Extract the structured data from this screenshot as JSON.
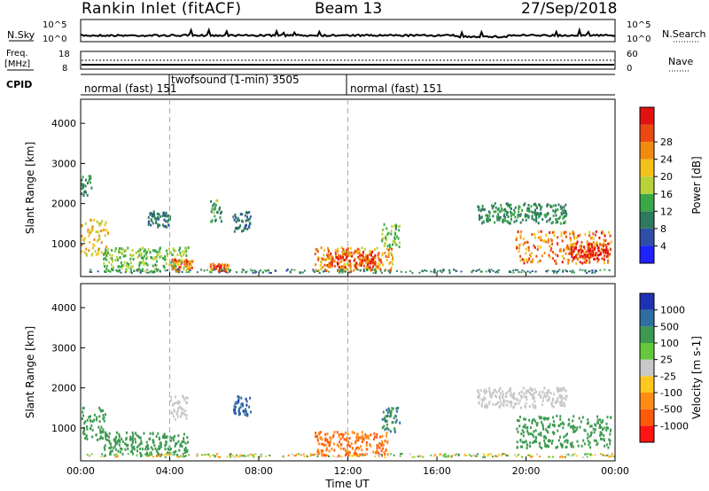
{
  "header": {
    "station": "Rankin Inlet (fitACF)",
    "beam": "Beam 13",
    "date": "27/Sep/2018"
  },
  "panels": {
    "nsky": {
      "left_label": "N.Sky",
      "left_ticks": [
        "10^5",
        "10^0"
      ],
      "right_label": "N.Search",
      "right_ticks": [
        "10^5",
        "10^0"
      ]
    },
    "freq": {
      "left_label_line1": "Freq.",
      "left_label_line2": "[MHz]",
      "left_ticks": [
        "18",
        "8"
      ],
      "right_label": "Nave",
      "right_ticks": [
        "60",
        "0"
      ]
    },
    "cpid": {
      "label": "CPID",
      "segments": [
        {
          "label": "normal (fast)  151",
          "start_hour": 0,
          "end_hour": 4
        },
        {
          "label": "twofsound (1-min) 3505",
          "start_hour": 4,
          "end_hour": 12
        },
        {
          "label": "normal (fast)  151",
          "start_hour": 12,
          "end_hour": 24
        }
      ]
    }
  },
  "x_axis": {
    "label": "Time UT",
    "ticks": [
      "00:00",
      "04:00",
      "08:00",
      "12:00",
      "16:00",
      "20:00",
      "00:00"
    ],
    "range_hours": [
      0,
      24
    ]
  },
  "colors": {
    "power": [
      "#1e22ff",
      "#2e4ea8",
      "#2e7a5e",
      "#3ba848",
      "#b7d23a",
      "#f5c21a",
      "#f08a10",
      "#ea4a12",
      "#e31212"
    ],
    "velocity": [
      "#ff1414",
      "#ff5a0a",
      "#ff8c14",
      "#ffc81e",
      "#c8c8c8",
      "#64c83c",
      "#3c9a50",
      "#2e6ea0",
      "#2032b4"
    ]
  },
  "chart_data": [
    {
      "type": "heatmap",
      "title": "Power",
      "xlabel": "Time UT",
      "ylabel": "Slant Range [km]",
      "ylim": [
        180,
        4600
      ],
      "yticks": [
        "1000",
        "2000",
        "3000",
        "4000"
      ],
      "xlim": [
        0,
        24
      ],
      "colorbar": {
        "label": "Power [dB]",
        "range": [
          0,
          32
        ],
        "ticks": [
          "4",
          "8",
          "12",
          "16",
          "20",
          "24",
          "28"
        ]
      },
      "regions": [
        {
          "t0": 0.0,
          "t1": 1.2,
          "r0": 700,
          "r1": 1600,
          "level": 20
        },
        {
          "t0": 0.0,
          "t1": 0.5,
          "r0": 2200,
          "r1": 2700,
          "level": 10
        },
        {
          "t0": 1.0,
          "t1": 4.8,
          "r0": 300,
          "r1": 900,
          "level": 14
        },
        {
          "t0": 4.0,
          "t1": 5.0,
          "r0": 300,
          "r1": 600,
          "level": 24
        },
        {
          "t0": 5.8,
          "t1": 6.6,
          "r0": 300,
          "r1": 500,
          "level": 26
        },
        {
          "t0": 3.0,
          "t1": 4.0,
          "r0": 1400,
          "r1": 1800,
          "level": 8
        },
        {
          "t0": 5.8,
          "t1": 6.3,
          "r0": 1500,
          "r1": 2100,
          "level": 12
        },
        {
          "t0": 6.8,
          "t1": 7.6,
          "r0": 1300,
          "r1": 1800,
          "level": 8
        },
        {
          "t0": 10.5,
          "t1": 14.0,
          "r0": 300,
          "r1": 900,
          "level": 22
        },
        {
          "t0": 11.0,
          "t1": 13.2,
          "r0": 400,
          "r1": 800,
          "level": 28
        },
        {
          "t0": 13.5,
          "t1": 14.3,
          "r0": 900,
          "r1": 1500,
          "level": 14
        },
        {
          "t0": 17.8,
          "t1": 21.8,
          "r0": 1500,
          "r1": 2000,
          "level": 10
        },
        {
          "t0": 19.5,
          "t1": 23.8,
          "r0": 500,
          "r1": 1300,
          "level": 24
        },
        {
          "t0": 22.0,
          "t1": 23.8,
          "r0": 600,
          "r1": 1000,
          "level": 30
        }
      ]
    },
    {
      "type": "heatmap",
      "title": "Velocity",
      "xlabel": "Time UT",
      "ylabel": "Slant Range [km]",
      "ylim": [
        180,
        4600
      ],
      "yticks": [
        "1000",
        "2000",
        "3000",
        "4000"
      ],
      "xlim": [
        0,
        24
      ],
      "colorbar": {
        "label": "Velocity [m s-1]",
        "ticks": [
          "-1000",
          "-500",
          "-100",
          "-25",
          "25",
          "100",
          "500",
          "1000"
        ]
      },
      "regions": [
        {
          "t0": 0.0,
          "t1": 1.2,
          "r0": 700,
          "r1": 1500,
          "level": 150
        },
        {
          "t0": 1.0,
          "t1": 4.8,
          "r0": 300,
          "r1": 900,
          "level": 200
        },
        {
          "t0": 4.0,
          "t1": 4.8,
          "r0": 1200,
          "r1": 1800,
          "level": 0
        },
        {
          "t0": 6.8,
          "t1": 7.6,
          "r0": 1300,
          "r1": 1800,
          "level": 600
        },
        {
          "t0": 10.5,
          "t1": 13.8,
          "r0": 300,
          "r1": 900,
          "level": -300
        },
        {
          "t0": 13.5,
          "t1": 14.3,
          "r0": 900,
          "r1": 1500,
          "level": 300
        },
        {
          "t0": 17.8,
          "t1": 21.8,
          "r0": 1500,
          "r1": 2000,
          "level": 0
        },
        {
          "t0": 19.5,
          "t1": 23.8,
          "r0": 500,
          "r1": 1300,
          "level": 150
        }
      ]
    }
  ]
}
